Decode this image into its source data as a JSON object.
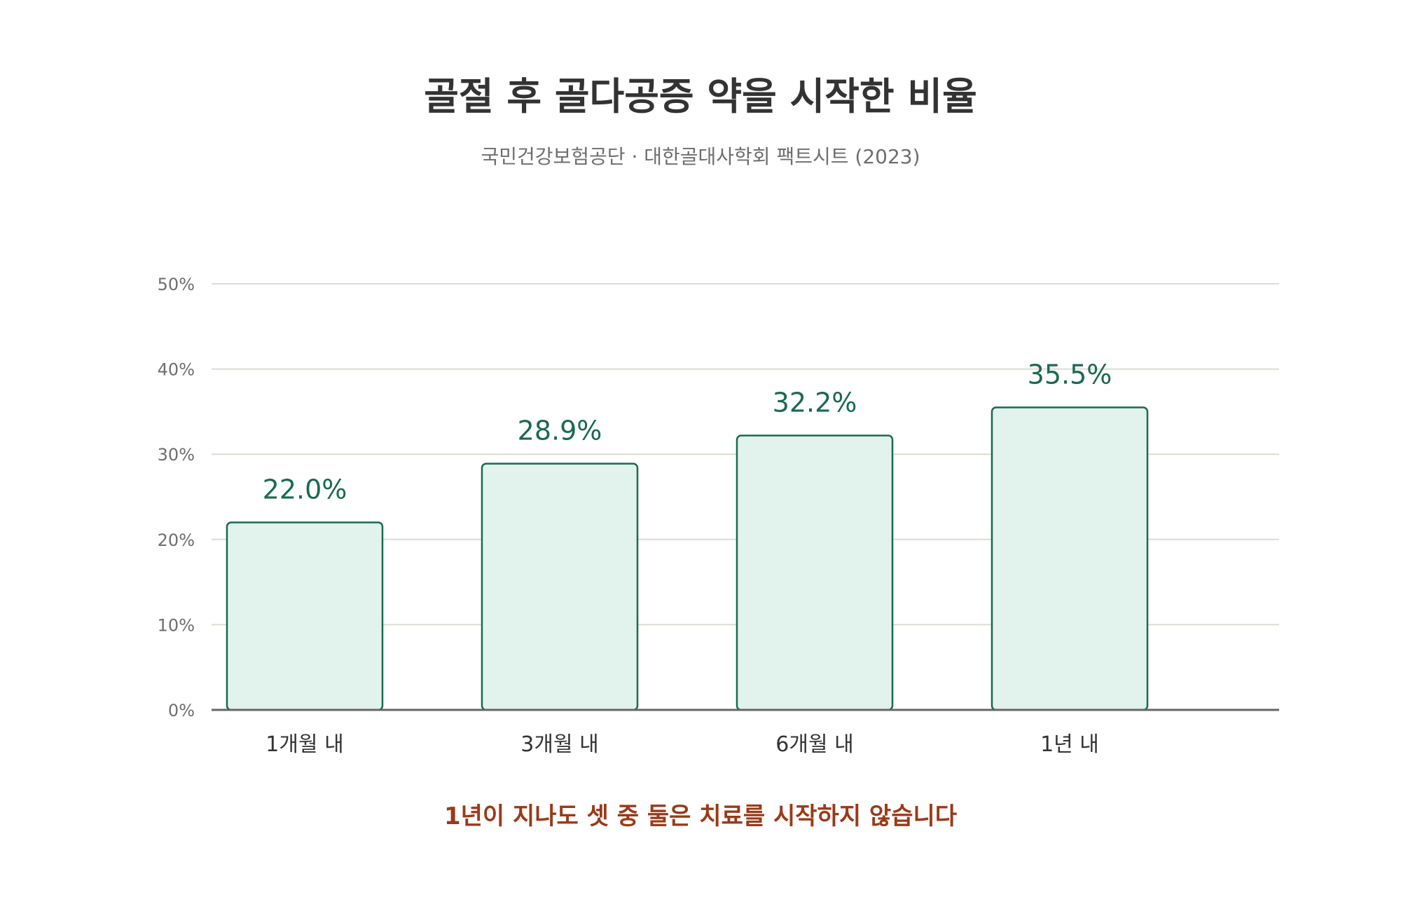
{
  "chart_data": {
    "type": "bar",
    "title": "골절 후 골다공증 약을 시작한 비율",
    "subtitle": "국민건강보험공단 · 대한골대사학회 팩트시트 (2023)",
    "categories": [
      "1개월 내",
      "3개월 내",
      "6개월 내",
      "1년 내"
    ],
    "values": [
      22.0,
      28.9,
      32.2,
      35.5
    ],
    "value_labels": [
      "22.0%",
      "28.9%",
      "32.2%",
      "35.5%"
    ],
    "ylim": [
      0,
      50
    ],
    "yticks": [
      0,
      10,
      20,
      30,
      40,
      50
    ],
    "ytick_labels": [
      "0%",
      "10%",
      "20%",
      "30%",
      "40%",
      "50%"
    ],
    "xlabel": "",
    "ylabel": "",
    "grid": true,
    "legend": "none",
    "note": "1년이 지나도 셋 중 둘은 치료를 시작하지 않습니다",
    "colors": {
      "bar_fill": "#e1f3ec",
      "bar_stroke": "#1a6a4e",
      "value_label": "#1a6a4e",
      "grid": "#dcdcd4",
      "axis": "#666666",
      "note": "#9a3a18",
      "title": "#333333",
      "subtitle": "#6e6e6e"
    }
  }
}
